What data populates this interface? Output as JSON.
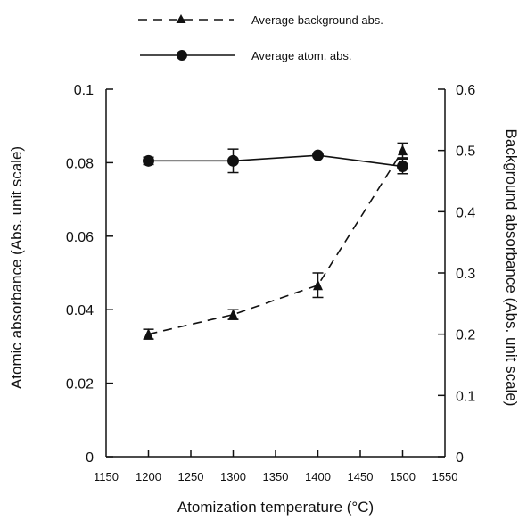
{
  "chart_data": {
    "type": "line",
    "title": "",
    "xlabel": "Atomization temperature (°C)",
    "ylabel": "Atomic absorbance (Abs. unit scale)",
    "ylabel_right": "Background absorbance (Abs. unit scale)",
    "xlim": [
      1150,
      1550
    ],
    "ylim": [
      0,
      0.1
    ],
    "ylim_right": [
      0,
      0.6
    ],
    "x_ticks": [
      1150,
      1200,
      1250,
      1300,
      1350,
      1400,
      1450,
      1500,
      1550
    ],
    "x_tick_labels": [
      "1150",
      "1200",
      "1250",
      "1300",
      "1350",
      "1400",
      "1450",
      "1500",
      "1550"
    ],
    "y_ticks": [
      0,
      0.02,
      0.04,
      0.06,
      0.08,
      0.1
    ],
    "y_tick_labels": [
      "0",
      "0.02",
      "0.04",
      "0.06",
      "0.08",
      "0.1"
    ],
    "y_ticks_right": [
      0,
      0.1,
      0.2,
      0.3,
      0.4,
      0.5,
      0.6
    ],
    "y_tick_labels_right": [
      "0",
      "0.1",
      "0.2",
      "0.3",
      "0.4",
      "0.5",
      "0.6"
    ],
    "grid": false,
    "legend_position": "top-center",
    "series": [
      {
        "name": "Average atom. abs.",
        "axis": "left",
        "line_style": "solid",
        "marker": "circle",
        "x": [
          1200,
          1300,
          1400,
          1500
        ],
        "y": [
          0.0805,
          0.0805,
          0.082,
          0.079
        ],
        "error": [
          0.001,
          0.0032,
          0,
          0.002
        ]
      },
      {
        "name": "Average background abs.",
        "axis": "right",
        "line_style": "dashed",
        "marker": "triangle",
        "x": [
          1200,
          1300,
          1400,
          1500
        ],
        "y": [
          0.2,
          0.232,
          0.28,
          0.5
        ],
        "error": [
          0.008,
          0.008,
          0.02,
          0.012
        ]
      }
    ]
  }
}
